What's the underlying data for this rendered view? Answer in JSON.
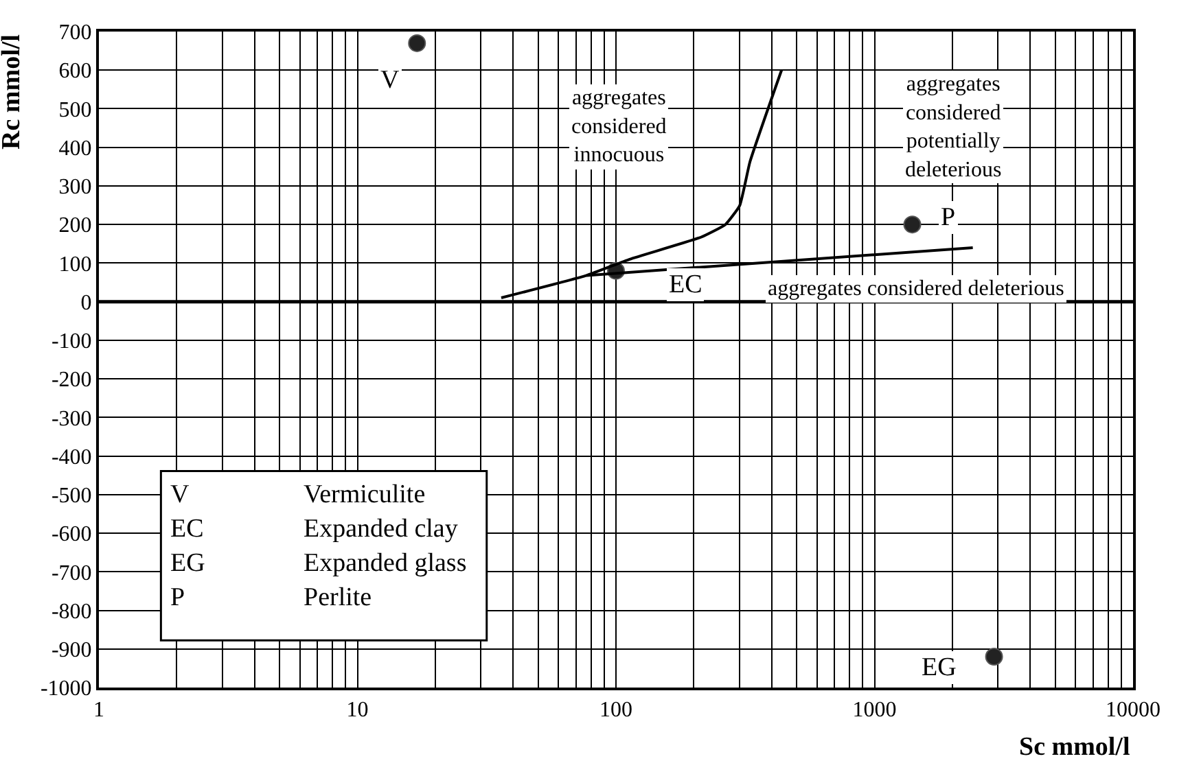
{
  "chart_data": {
    "type": "scatter",
    "xlabel": "Sc mmol/l",
    "ylabel": "Rc mmol/l",
    "log": "x",
    "grid": true,
    "xlim": [
      1,
      10000
    ],
    "xticks": [
      1,
      10,
      100,
      1000,
      10000
    ],
    "ylim": [
      -1000,
      700
    ],
    "yticks": [
      -1000,
      -900,
      -800,
      -700,
      -600,
      -500,
      -400,
      -300,
      -200,
      -100,
      0,
      100,
      200,
      300,
      400,
      500,
      600,
      700
    ],
    "x": [
      17,
      100,
      1400,
      2900
    ],
    "series": [
      {
        "color": "#222222",
        "marker": "circle",
        "values": [
          670,
          80,
          200,
          -920
        ]
      },
      {
        "type": "line",
        "color": "#000000",
        "x": [
          36,
          77,
          113,
          213,
          265,
          301,
          330,
          437
        ],
        "values": [
          10,
          68,
          110,
          167,
          200,
          249,
          363,
          600
        ]
      },
      {
        "type": "line",
        "color": "#000000",
        "x": [
          77,
          2400
        ],
        "values": [
          68,
          140
        ]
      }
    ],
    "ref_lines": [
      {
        "axis": "y",
        "value": 0,
        "color": "#000000"
      }
    ],
    "annotations": [
      {
        "text": "V",
        "x": 17,
        "y": 670
      },
      {
        "text": "EC",
        "x": 100,
        "y": 80
      },
      {
        "text": "P",
        "x": 1400,
        "y": 200
      },
      {
        "text": "EG",
        "x": 2900,
        "y": -920
      },
      "aggregates\nconsidered\ninnocuous",
      "aggregates\nconsidered\npotentially\ndeleterious",
      "aggregates considered deleterious",
      "V Vermiculite",
      "EC Expanded clay",
      "EG Expanded glass",
      "P Perlite"
    ]
  }
}
